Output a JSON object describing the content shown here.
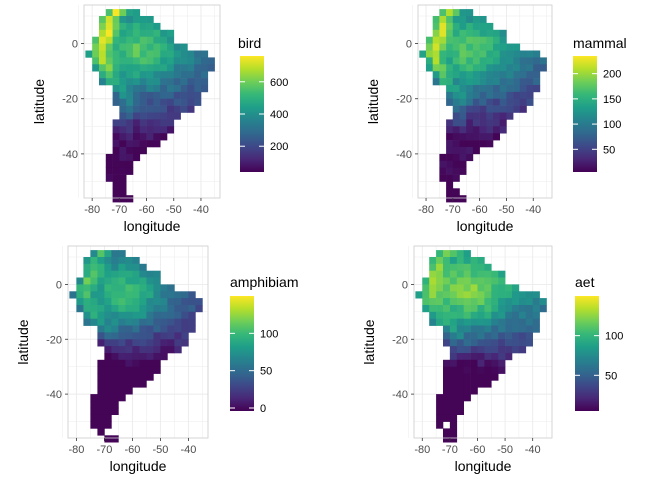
{
  "figure": {
    "colormap": "viridis",
    "panel_border_color": "#cccccc",
    "gridline_color": "#ebebeb"
  },
  "chart_data": [
    {
      "type": "heatmap",
      "xlabel": "longitude",
      "ylabel": "latitude",
      "xticks": [
        "-80",
        "-70",
        "-60",
        "-50",
        "-40"
      ],
      "yticks": [
        "0",
        "-20",
        "-40"
      ],
      "xlim": [
        -83,
        -33
      ],
      "ylim": [
        -56,
        14
      ],
      "grid": true,
      "legend": {
        "title": "bird",
        "range": [
          40,
          760
        ],
        "ticks": [
          {
            "value": 200,
            "label": "200"
          },
          {
            "value": 400,
            "label": "400"
          },
          {
            "value": 600,
            "label": "600"
          }
        ]
      }
    },
    {
      "type": "heatmap",
      "xlabel": "longitude",
      "ylabel": "latitude",
      "xticks": [
        "-80",
        "-70",
        "-60",
        "-50",
        "-40"
      ],
      "yticks": [
        "0",
        "-20",
        "-40"
      ],
      "xlim": [
        -83,
        -33
      ],
      "ylim": [
        -56,
        14
      ],
      "grid": true,
      "legend": {
        "title": "mammal",
        "range": [
          5,
          235
        ],
        "ticks": [
          {
            "value": 50,
            "label": "50"
          },
          {
            "value": 100,
            "label": "100"
          },
          {
            "value": 150,
            "label": "150"
          },
          {
            "value": 200,
            "label": "200"
          }
        ]
      }
    },
    {
      "type": "heatmap",
      "xlabel": "longitude",
      "ylabel": "latitude",
      "xticks": [
        "-80",
        "-70",
        "-60",
        "-50",
        "-40"
      ],
      "yticks": [
        "0",
        "-20",
        "-40"
      ],
      "xlim": [
        -83,
        -33
      ],
      "ylim": [
        -56,
        14
      ],
      "grid": true,
      "legend": {
        "title": "amphibiam",
        "range": [
          -4,
          150
        ],
        "ticks": [
          {
            "value": 0,
            "label": "0"
          },
          {
            "value": 50,
            "label": "50"
          },
          {
            "value": 100,
            "label": "100"
          }
        ]
      }
    },
    {
      "type": "heatmap",
      "xlabel": "longitude",
      "ylabel": "latitude",
      "xticks": [
        "-80",
        "-70",
        "-60",
        "-50",
        "-40"
      ],
      "yticks": [
        "0",
        "-20",
        "-40"
      ],
      "xlim": [
        -83,
        -33
      ],
      "ylim": [
        -56,
        14
      ],
      "grid": true,
      "legend": {
        "title": "aet",
        "range": [
          5,
          150
        ],
        "ticks": [
          {
            "value": 50,
            "label": "50"
          },
          {
            "value": 100,
            "label": "100"
          }
        ]
      }
    }
  ]
}
